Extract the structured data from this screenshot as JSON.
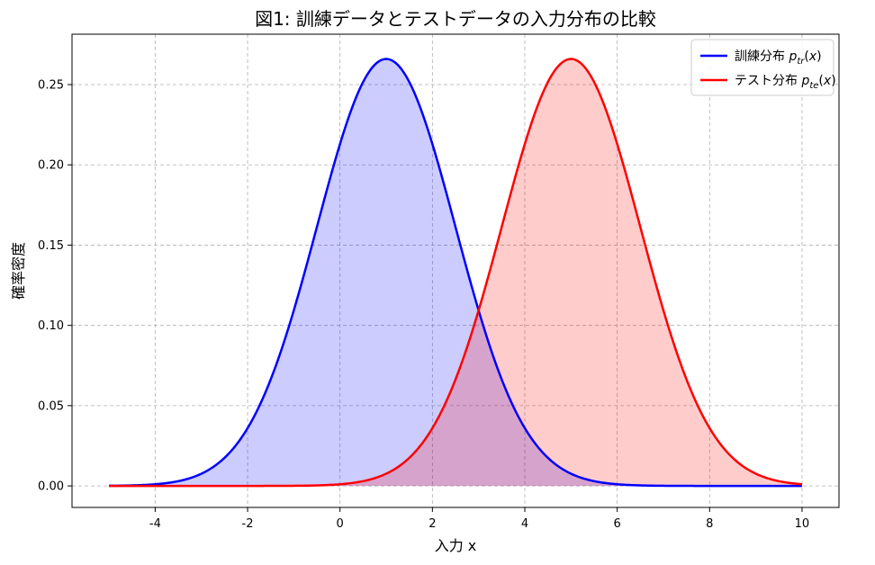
{
  "chart_data": {
    "type": "area",
    "title": "図1: 訓練データとテストデータの入力分布の比較",
    "xlabel": "入力 x",
    "ylabel": "確率密度",
    "xlim": [
      -5.8,
      10.8
    ],
    "ylim": [
      -0.0134,
      0.2814
    ],
    "xticks": [
      -4,
      -2,
      0,
      2,
      4,
      6,
      8,
      10
    ],
    "xtick_labels": [
      "-4",
      "-2",
      "0",
      "2",
      "4",
      "6",
      "8",
      "10"
    ],
    "yticks": [
      0.0,
      0.05,
      0.1,
      0.15,
      0.2,
      0.25
    ],
    "ytick_labels": [
      "0.00",
      "0.05",
      "0.10",
      "0.15",
      "0.20",
      "0.25"
    ],
    "grid": true,
    "legend_position": "top-right",
    "x_range": [
      -5,
      10
    ],
    "series": [
      {
        "name": "訓練分布 p_tr(x)",
        "legend": {
          "prefix": "訓練分布 ",
          "sub": "tr"
        },
        "color": "#0000ff",
        "fill": "#ccccff",
        "distribution": "normal",
        "mean": 1,
        "std": 1.5
      },
      {
        "name": "テスト分布 p_te(x)",
        "legend": {
          "prefix": "テスト分布 ",
          "sub": "te"
        },
        "color": "#ff0000",
        "fill": "#ffcccc",
        "distribution": "normal",
        "mean": 5,
        "std": 1.5
      }
    ]
  }
}
